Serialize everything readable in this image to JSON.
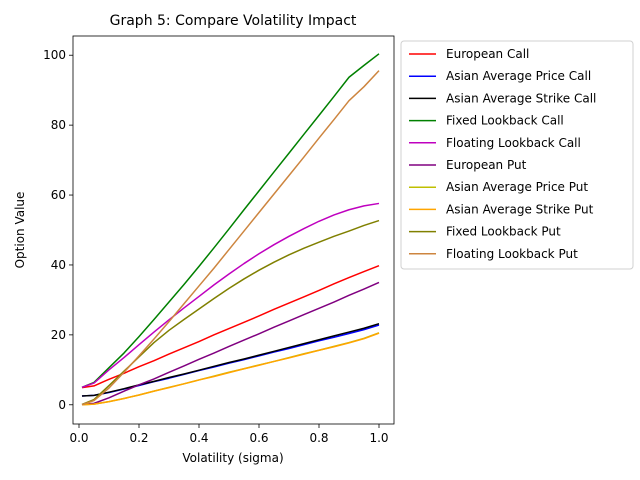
{
  "chart_data": {
    "type": "line",
    "title": "Graph 5: Compare Volatility Impact",
    "xlabel": "Volatility (sigma)",
    "ylabel": "Option Value",
    "xlim": [
      -0.02,
      1.05
    ],
    "ylim": [
      -5.5,
      105.5
    ],
    "x_ticks": [
      0.0,
      0.2,
      0.4,
      0.6,
      0.8,
      1.0
    ],
    "x_tick_labels": [
      "0.0",
      "0.2",
      "0.4",
      "0.6",
      "0.8",
      "1.0"
    ],
    "y_ticks": [
      0,
      20,
      40,
      60,
      80,
      100
    ],
    "y_tick_labels": [
      "0",
      "20",
      "40",
      "60",
      "80",
      "100"
    ],
    "grid": false,
    "legend_position": "outside-right-top",
    "x": [
      0.01,
      0.05,
      0.1,
      0.15,
      0.2,
      0.25,
      0.3,
      0.35,
      0.4,
      0.45,
      0.5,
      0.55,
      0.6,
      0.65,
      0.7,
      0.75,
      0.8,
      0.85,
      0.9,
      0.95,
      1.0
    ],
    "series": [
      {
        "name": "European Call",
        "color": "#ff0000",
        "values": [
          4.9,
          5.4,
          7.3,
          9.0,
          10.9,
          12.6,
          14.5,
          16.3,
          18.1,
          20.0,
          21.8,
          23.6,
          25.4,
          27.3,
          29.1,
          30.9,
          32.7,
          34.6,
          36.4,
          38.1,
          39.8
        ]
      },
      {
        "name": "Asian Average Price Call",
        "color": "#0000ff",
        "values": [
          2.5,
          2.7,
          3.5,
          4.5,
          5.5,
          6.6,
          7.6,
          8.7,
          9.8,
          10.8,
          11.9,
          12.9,
          14.0,
          15.1,
          16.1,
          17.2,
          18.3,
          19.3,
          20.4,
          21.5,
          22.8
        ]
      },
      {
        "name": "Asian Average Strike Call",
        "color": "#000000",
        "values": [
          2.5,
          2.7,
          3.6,
          4.6,
          5.7,
          6.7,
          7.8,
          8.8,
          9.9,
          11.0,
          12.1,
          13.1,
          14.2,
          15.3,
          16.4,
          17.5,
          18.6,
          19.7,
          20.8,
          21.9,
          23.2
        ]
      },
      {
        "name": "Fixed Lookback Call",
        "color": "#008000",
        "values": [
          5.0,
          6.4,
          10.6,
          14.8,
          19.5,
          24.4,
          29.4,
          34.4,
          39.6,
          44.9,
          50.3,
          55.8,
          61.2,
          66.6,
          72.0,
          77.4,
          82.8,
          88.2,
          93.7,
          97.1,
          100.4
        ]
      },
      {
        "name": "Floating Lookback Call",
        "color": "#bf00bf",
        "values": [
          5.0,
          6.2,
          10.0,
          13.5,
          17.2,
          20.8,
          24.3,
          27.7,
          31.0,
          34.3,
          37.4,
          40.4,
          43.2,
          45.8,
          48.2,
          50.4,
          52.5,
          54.3,
          55.8,
          56.9,
          57.6
        ]
      },
      {
        "name": "European Put",
        "color": "#800080",
        "values": [
          0.1,
          0.4,
          2.0,
          3.9,
          5.7,
          7.4,
          9.3,
          11.1,
          13.0,
          14.8,
          16.7,
          18.5,
          20.3,
          22.2,
          24.0,
          25.8,
          27.6,
          29.4,
          31.3,
          33.1,
          35.0
        ]
      },
      {
        "name": "Asian Average Price Put",
        "color": "#bfbf00",
        "values": [
          0.0,
          0.2,
          0.9,
          1.8,
          2.8,
          3.9,
          5.0,
          6.0,
          7.1,
          8.2,
          9.3,
          10.3,
          11.4,
          12.4,
          13.5,
          14.6,
          15.6,
          16.7,
          17.8,
          19.0,
          20.6
        ]
      },
      {
        "name": "Asian Average Strike Put",
        "color": "#ffa500",
        "values": [
          0.0,
          0.2,
          0.9,
          1.8,
          2.8,
          3.9,
          4.9,
          6.0,
          7.1,
          8.1,
          9.2,
          10.3,
          11.3,
          12.4,
          13.4,
          14.5,
          15.6,
          16.6,
          17.7,
          18.9,
          20.5
        ]
      },
      {
        "name": "Fixed Lookback Put",
        "color": "#808000",
        "values": [
          0.1,
          1.5,
          5.5,
          9.6,
          13.7,
          17.8,
          21.3,
          24.4,
          27.4,
          30.4,
          33.3,
          36.0,
          38.5,
          40.8,
          42.9,
          44.8,
          46.5,
          48.2,
          49.7,
          51.3,
          52.7
        ]
      },
      {
        "name": "Floating Lookback Put",
        "color": "#cd853f",
        "values": [
          0.0,
          1.2,
          4.8,
          9.3,
          14.0,
          18.8,
          23.8,
          28.9,
          34.0,
          39.1,
          44.4,
          49.7,
          55.0,
          60.3,
          65.6,
          70.9,
          76.3,
          81.6,
          87.0,
          91.0,
          95.6
        ]
      }
    ]
  }
}
